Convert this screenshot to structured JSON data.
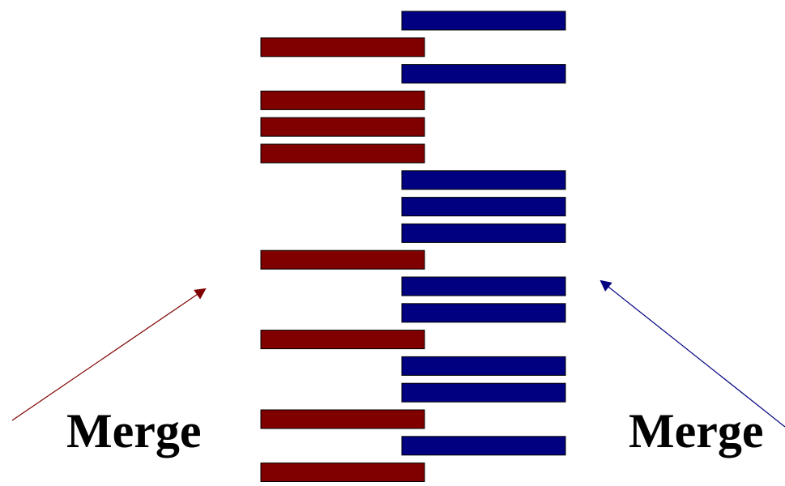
{
  "labels": {
    "left": "Merge",
    "right": "Merge"
  },
  "colors": {
    "left_stream": "#800000",
    "right_stream": "#000080",
    "bar_stroke": "#000000",
    "text": "#000000"
  },
  "sequence": [
    "right",
    "left",
    "right",
    "left",
    "left",
    "left",
    "right",
    "right",
    "right",
    "left",
    "right",
    "right",
    "left",
    "right",
    "right",
    "left",
    "right",
    "left"
  ]
}
